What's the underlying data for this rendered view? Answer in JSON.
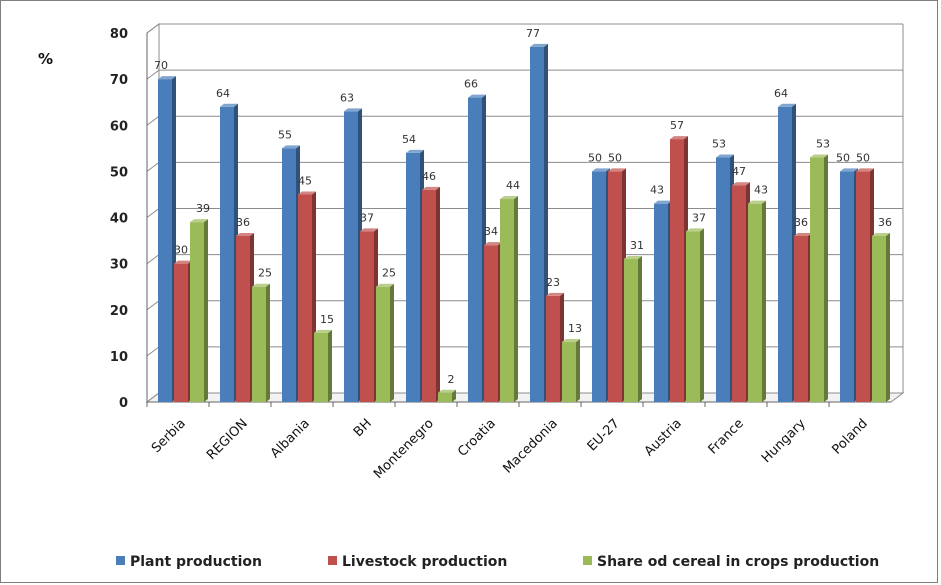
{
  "chart_data": {
    "type": "bar",
    "ylabel": "%",
    "ylim": [
      0,
      80
    ],
    "yticks": [
      0,
      10,
      20,
      30,
      40,
      50,
      60,
      70,
      80
    ],
    "grid": true,
    "legend": "bottom",
    "categories": [
      "Serbia",
      "REGION",
      "Albania",
      "BH",
      "Montenegro",
      "Croatia",
      "Macedonia",
      "EU-27",
      "Austria",
      "France",
      "Hungary",
      "Poland"
    ],
    "series": [
      {
        "name": "Plant production",
        "color": "#4a7ebb",
        "values": [
          70,
          64,
          55,
          63,
          54,
          66,
          77,
          50,
          43,
          53,
          64,
          50
        ]
      },
      {
        "name": "Livestock production",
        "color": "#c0504d",
        "values": [
          30,
          36,
          45,
          37,
          46,
          34,
          23,
          50,
          57,
          47,
          36,
          50
        ]
      },
      {
        "name": "Share od cereal in crops production",
        "color": "#9bbb59",
        "values": [
          39,
          25,
          15,
          25,
          2,
          44,
          13,
          31,
          37,
          43,
          53,
          36
        ]
      }
    ]
  }
}
